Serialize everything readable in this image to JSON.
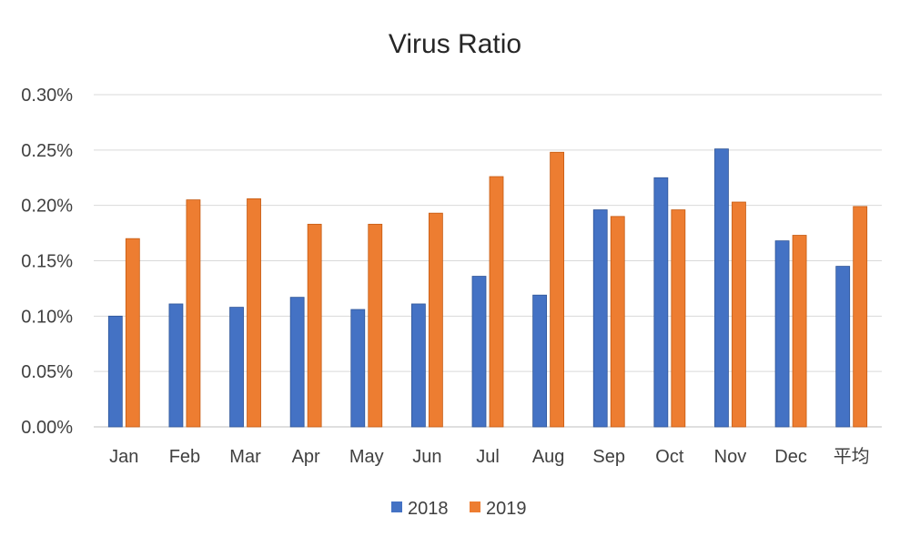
{
  "chart_data": {
    "type": "bar",
    "title": "Virus Ratio",
    "xlabel": "",
    "ylabel": "",
    "categories": [
      "Jan",
      "Feb",
      "Mar",
      "Apr",
      "May",
      "Jun",
      "Jul",
      "Aug",
      "Sep",
      "Oct",
      "Nov",
      "Dec",
      "平均"
    ],
    "series": [
      {
        "name": "2018",
        "color": "#4472C4",
        "values": [
          0.1,
          0.111,
          0.108,
          0.117,
          0.106,
          0.111,
          0.136,
          0.119,
          0.196,
          0.225,
          0.251,
          0.168,
          0.145
        ]
      },
      {
        "name": "2019",
        "color": "#ED7D31",
        "values": [
          0.17,
          0.205,
          0.206,
          0.183,
          0.183,
          0.193,
          0.226,
          0.248,
          0.19,
          0.196,
          0.203,
          0.173,
          0.199
        ]
      }
    ],
    "ylim": [
      0,
      0.3
    ],
    "yticks": [
      "0.00%",
      "0.05%",
      "0.10%",
      "0.15%",
      "0.20%",
      "0.25%",
      "0.30%"
    ],
    "value_unit": "percent",
    "grid": true,
    "legend_position": "bottom"
  }
}
